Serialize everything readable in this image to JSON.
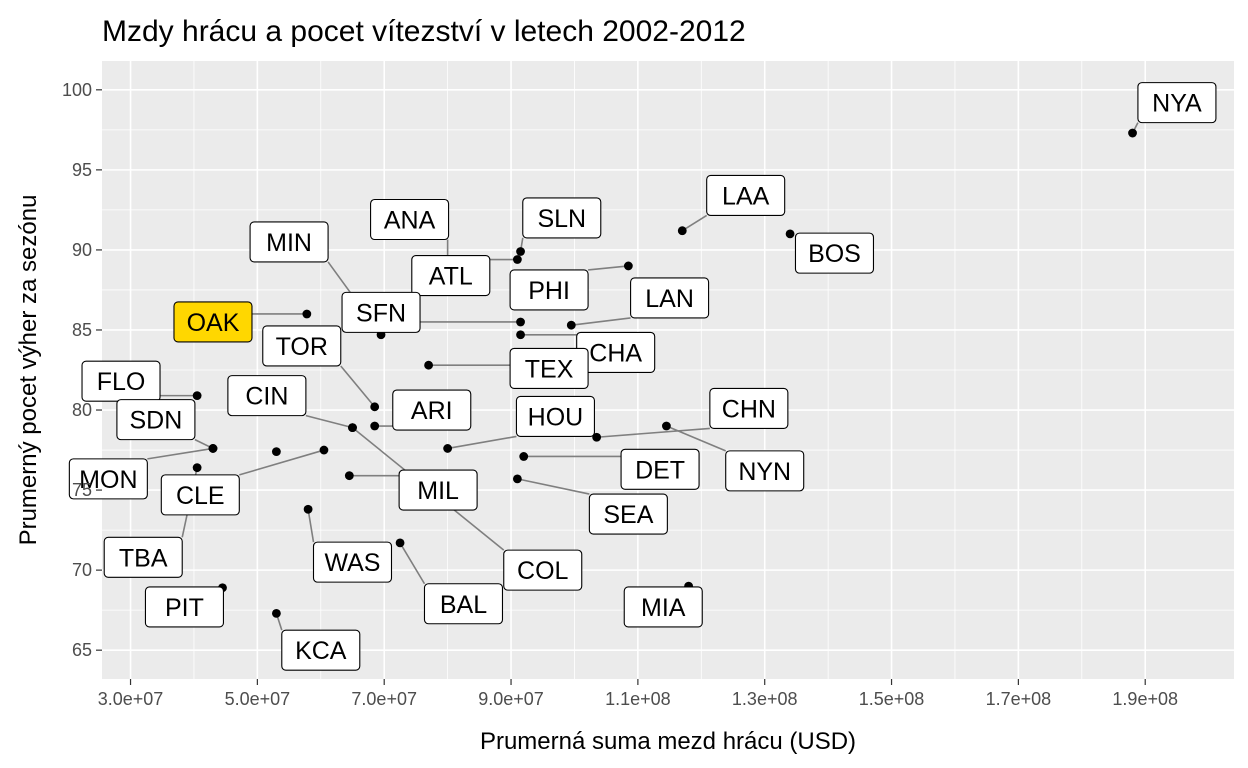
{
  "chart_data": {
    "type": "scatter",
    "title": "Mzdy hrácu a pocet vítezství v letech 2002-2012",
    "xlabel": "Prumerná suma mezd hrácu (USD)",
    "ylabel": "Prumerný pocet výher za sezónu",
    "xlim": [
      25500000,
      204000000
    ],
    "ylim": [
      63.2,
      101.8
    ],
    "x_ticks": [
      30000000,
      50000000,
      70000000,
      90000000,
      110000000,
      130000000,
      150000000,
      170000000,
      190000000
    ],
    "x_tick_labels": [
      "3.0e+07",
      "5.0e+07",
      "7.0e+07",
      "9.0e+07",
      "1.1e+08",
      "1.3e+08",
      "1.5e+08",
      "1.7e+08",
      "1.9e+08"
    ],
    "y_ticks": [
      65,
      70,
      75,
      80,
      85,
      90,
      95,
      100
    ],
    "y_tick_labels": [
      "65",
      "70",
      "75",
      "80",
      "85",
      "90",
      "95",
      "100"
    ],
    "grid": true,
    "panel_background": "#ebebeb",
    "point_color": "#000000",
    "highlight_fill": "#ffd700",
    "label_fill": "#ffffff",
    "teams": [
      {
        "label": "NYA",
        "x": 188000000,
        "y": 97.3,
        "lx": 195000000,
        "ly": 99.2
      },
      {
        "label": "BOS",
        "x": 134000000,
        "y": 91.0,
        "lx": 141000000,
        "ly": 89.8
      },
      {
        "label": "LAA",
        "x": 117000000,
        "y": 91.2,
        "lx": 127000000,
        "ly": 93.4
      },
      {
        "label": "SLN",
        "x": 91500000,
        "y": 89.9,
        "lx": 98000000,
        "ly": 92.0
      },
      {
        "label": "ANA",
        "x": 80000000,
        "y": 89.3,
        "lx": 74000000,
        "ly": 91.9
      },
      {
        "label": "ATL",
        "x": 91000000,
        "y": 89.4,
        "lx": 80500000,
        "ly": 88.4
      },
      {
        "label": "PHI",
        "x": 108500000,
        "y": 89.0,
        "lx": 96000000,
        "ly": 87.5
      },
      {
        "label": "LAN",
        "x": 99500000,
        "y": 85.3,
        "lx": 115000000,
        "ly": 87.0
      },
      {
        "label": "MIN",
        "x": 69500000,
        "y": 84.7,
        "lx": 55000000,
        "ly": 90.5
      },
      {
        "label": "OAK",
        "x": 57800000,
        "y": 86.0,
        "lx": 43000000,
        "ly": 85.5
      },
      {
        "label": "SFN",
        "x": 91500000,
        "y": 85.5,
        "lx": 69500000,
        "ly": 86.1
      },
      {
        "label": "CHA",
        "x": 91500000,
        "y": 84.7,
        "lx": 106500000,
        "ly": 83.6
      },
      {
        "label": "TEX",
        "x": 77000000,
        "y": 82.8,
        "lx": 96000000,
        "ly": 82.6
      },
      {
        "label": "TOR",
        "x": 68500000,
        "y": 80.2,
        "lx": 57000000,
        "ly": 84.0
      },
      {
        "label": "FLO",
        "x": 40500000,
        "y": 80.9,
        "lx": 28500000,
        "ly": 81.8
      },
      {
        "label": "ARI",
        "x": 68500000,
        "y": 79.0,
        "lx": 77500000,
        "ly": 80.0
      },
      {
        "label": "CIN",
        "x": 65000000,
        "y": 78.9,
        "lx": 51500000,
        "ly": 80.9
      },
      {
        "label": "HOU",
        "x": 80000000,
        "y": 77.6,
        "lx": 97000000,
        "ly": 79.6
      },
      {
        "label": "CHN",
        "x": 103500000,
        "y": 78.3,
        "lx": 127500000,
        "ly": 80.1
      },
      {
        "label": "SDN",
        "x": 43000000,
        "y": 77.6,
        "lx": 34000000,
        "ly": 79.4
      },
      {
        "label": "NYN",
        "x": 114500000,
        "y": 79.0,
        "lx": 130000000,
        "ly": 76.2
      },
      {
        "label": "DET",
        "x": 92000000,
        "y": 77.1,
        "lx": 113500000,
        "ly": 76.3
      },
      {
        "label": "MON",
        "x": 43000000,
        "y": 77.6,
        "lx": 26500000,
        "ly": 75.7
      },
      {
        "label": "CLE",
        "x": 60500000,
        "y": 77.5,
        "lx": 41000000,
        "ly": 74.7
      },
      {
        "label": "MIL",
        "x": 64500000,
        "y": 75.9,
        "lx": 78500000,
        "ly": 75.0
      },
      {
        "label": "SEA",
        "x": 91000000,
        "y": 75.7,
        "lx": 108500000,
        "ly": 73.5
      },
      {
        "label": "TBA",
        "x": 40500000,
        "y": 76.4,
        "lx": 32000000,
        "ly": 70.8
      },
      {
        "label": "WAS",
        "x": 58000000,
        "y": 73.8,
        "lx": 65000000,
        "ly": 70.5
      },
      {
        "label": "COL",
        "x": 65000000,
        "y": 78.9,
        "lx": 95000000,
        "ly": 70.0
      },
      {
        "label": "BAL",
        "x": 72500000,
        "y": 71.7,
        "lx": 82500000,
        "ly": 67.9
      },
      {
        "label": "PIT",
        "x": 44500000,
        "y": 68.9,
        "lx": 38500000,
        "ly": 67.7
      },
      {
        "label": "MIA",
        "x": 118000000,
        "y": 69.0,
        "lx": 114000000,
        "ly": 67.7
      },
      {
        "label": "KCA",
        "x": 53000000,
        "y": 67.3,
        "lx": 60000000,
        "ly": 65.0
      },
      {
        "label": "SDN-dot2",
        "x": 53000000,
        "y": 77.4,
        "lx": null,
        "ly": null
      }
    ],
    "highlight": "OAK"
  }
}
